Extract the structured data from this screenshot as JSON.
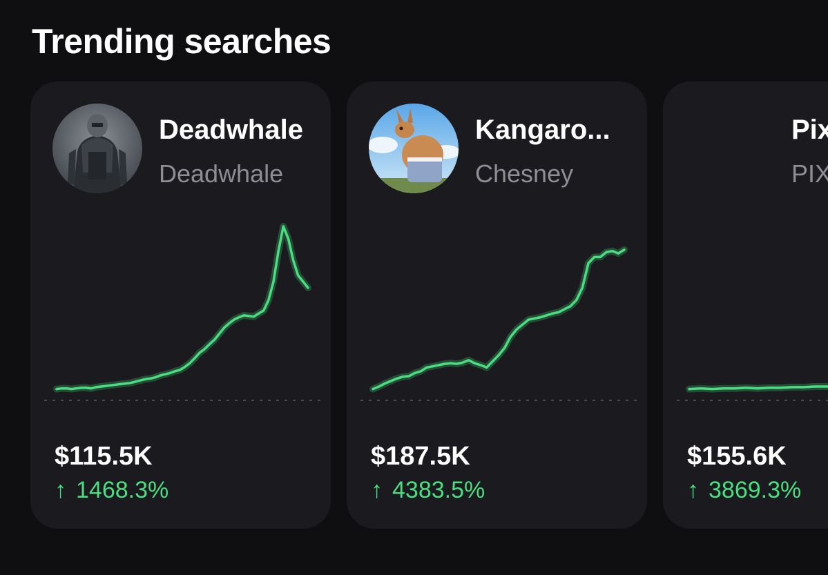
{
  "section": {
    "title": "Trending searches"
  },
  "accent_color": "#4ade80",
  "cards": [
    {
      "name": "Deadwhale",
      "ticker": "Deadwhale",
      "price": "$115.5K",
      "change_arrow": "↑",
      "change": "1468.3%",
      "avatar_icon": "armored-figure-avatar",
      "trend": [
        5,
        6,
        6,
        5,
        6,
        7,
        7,
        6,
        8,
        9,
        10,
        11,
        12,
        13,
        14,
        15,
        17,
        19,
        21,
        22,
        24,
        27,
        29,
        31,
        34,
        36,
        41,
        47,
        55,
        64,
        70,
        78,
        85,
        95,
        105,
        112,
        118,
        122,
        125,
        124,
        123,
        128,
        133,
        150,
        180,
        230,
        270,
        250,
        215,
        190,
        180,
        170
      ]
    },
    {
      "name": "Kangaro...",
      "ticker": "Chesney",
      "price": "$187.5K",
      "change_arrow": "↑",
      "change": "4383.5%",
      "avatar_icon": "kangaroo-avatar",
      "trend": [
        5,
        9,
        14,
        18,
        22,
        25,
        26,
        31,
        34,
        40,
        42,
        44,
        46,
        47,
        46,
        48,
        52,
        47,
        44,
        40,
        50,
        60,
        72,
        90,
        102,
        110,
        118,
        120,
        122,
        125,
        128,
        130,
        135,
        140,
        150,
        170,
        210,
        220,
        220,
        228,
        230,
        226,
        232
      ]
    },
    {
      "name": "Pix",
      "ticker": "PIX",
      "price": "$155.6K",
      "change_arrow": "↑",
      "change": "3869.3%",
      "avatar_icon": "pixel-avatar",
      "trend": [
        5,
        6,
        5,
        6,
        6,
        7,
        6,
        7,
        7,
        8,
        8,
        9,
        9,
        10,
        10,
        11,
        11,
        12,
        12,
        13,
        12,
        13,
        14,
        14
      ]
    }
  ]
}
